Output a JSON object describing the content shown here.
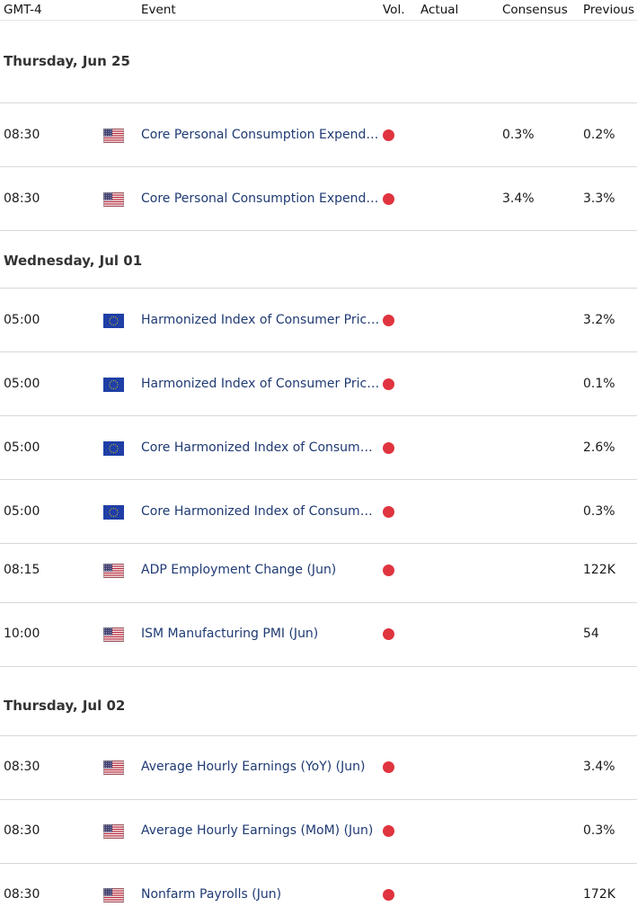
{
  "header": {
    "timezone": "GMT-4",
    "event": "Event",
    "vol": "Vol.",
    "actual": "Actual",
    "consensus": "Consensus",
    "previous": "Previous"
  },
  "colors": {
    "volatility_high": "#e0343f",
    "event_link": "#1f3a73"
  },
  "days": [
    {
      "label": "Thursday, Jun 25",
      "events": [
        {
          "time": "08:30",
          "flag": "us-flag-icon",
          "name": "Core Personal Consumption Expenditures",
          "display_name": "Core Personal Consumption Expendit…",
          "actual": "",
          "consensus": "0.3%",
          "previous": "0.2%"
        },
        {
          "time": "08:30",
          "flag": "us-flag-icon",
          "name": "Core Personal Consumption Expenditures",
          "display_name": "Core Personal Consumption Expendit…",
          "actual": "",
          "consensus": "3.4%",
          "previous": "3.3%"
        }
      ]
    },
    {
      "label": "Wednesday, Jul 01",
      "events": [
        {
          "time": "05:00",
          "flag": "eu-flag-icon",
          "name": "Harmonized Index of Consumer Prices",
          "display_name": "Harmonized Index of Consumer Price…",
          "actual": "",
          "consensus": "",
          "previous": "3.2%"
        },
        {
          "time": "05:00",
          "flag": "eu-flag-icon",
          "name": "Harmonized Index of Consumer Prices",
          "display_name": "Harmonized Index of Consumer Price…",
          "actual": "",
          "consensus": "",
          "previous": "0.1%"
        },
        {
          "time": "05:00",
          "flag": "eu-flag-icon",
          "name": "Core Harmonized Index of Consumer Prices",
          "display_name": "Core Harmonized Index of Consumer…",
          "actual": "",
          "consensus": "",
          "previous": "2.6%"
        },
        {
          "time": "05:00",
          "flag": "eu-flag-icon",
          "name": "Core Harmonized Index of Consumer Prices",
          "display_name": "Core Harmonized Index of Consumer…",
          "actual": "",
          "consensus": "",
          "previous": "0.3%"
        },
        {
          "time": "08:15",
          "flag": "us-flag-icon",
          "name": "ADP Employment Change (Jun)",
          "display_name": "ADP Employment Change (Jun)",
          "actual": "",
          "consensus": "",
          "previous": "122K"
        },
        {
          "time": "10:00",
          "flag": "us-flag-icon",
          "name": "ISM Manufacturing PMI (Jun)",
          "display_name": "ISM Manufacturing PMI (Jun)",
          "actual": "",
          "consensus": "",
          "previous": "54"
        }
      ]
    },
    {
      "label": "Thursday, Jul 02",
      "events": [
        {
          "time": "08:30",
          "flag": "us-flag-icon",
          "name": "Average Hourly Earnings (YoY) (Jun)",
          "display_name": "Average Hourly Earnings (YoY) (Jun)",
          "actual": "",
          "consensus": "",
          "previous": "3.4%"
        },
        {
          "time": "08:30",
          "flag": "us-flag-icon",
          "name": "Average Hourly Earnings (MoM) (Jun)",
          "display_name": "Average Hourly Earnings (MoM) (Jun)",
          "actual": "",
          "consensus": "",
          "previous": "0.3%"
        },
        {
          "time": "08:30",
          "flag": "us-flag-icon",
          "name": "Nonfarm Payrolls (Jun)",
          "display_name": "Nonfarm Payrolls (Jun)",
          "actual": "",
          "consensus": "",
          "previous": "172K"
        }
      ]
    }
  ]
}
